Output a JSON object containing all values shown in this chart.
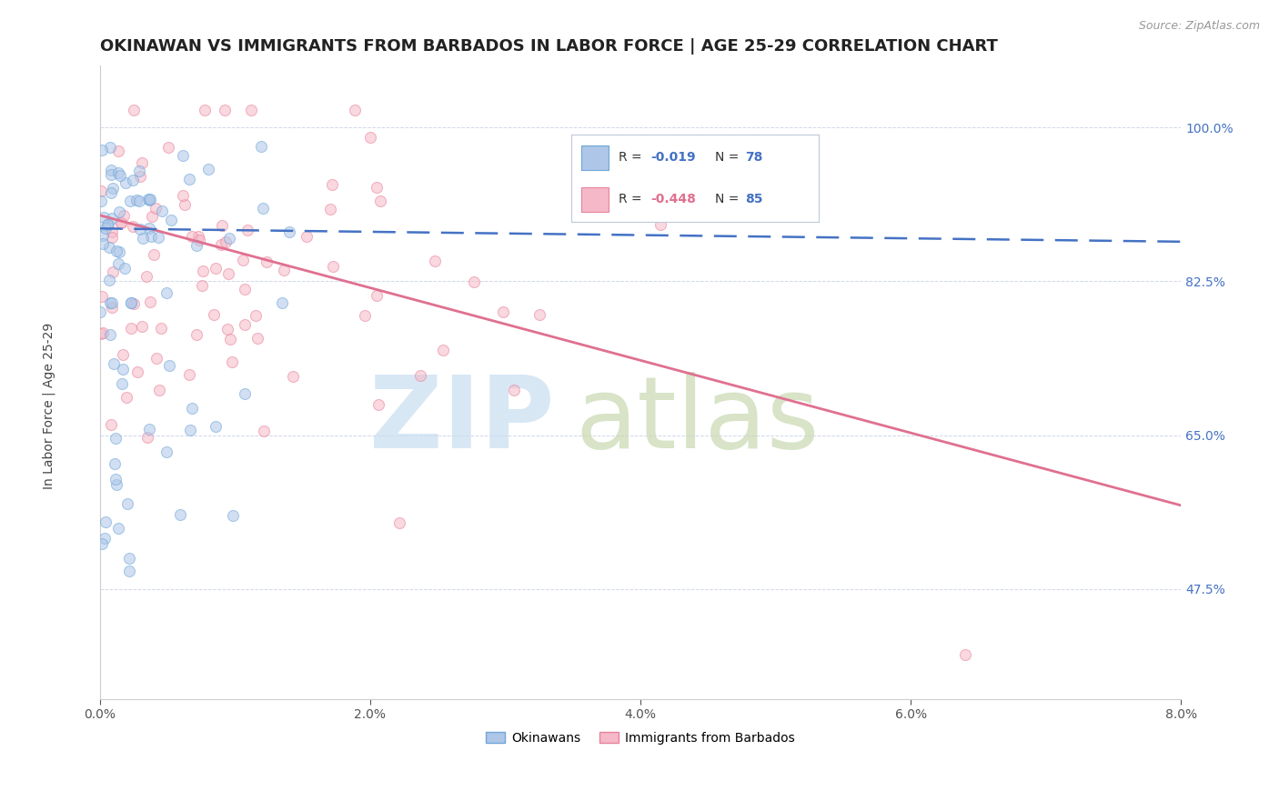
{
  "title": "OKINAWAN VS IMMIGRANTS FROM BARBADOS IN LABOR FORCE | AGE 25-29 CORRELATION CHART",
  "source": "Source: ZipAtlas.com",
  "xlabel_ticks": [
    "0.0%",
    "2.0%",
    "4.0%",
    "6.0%",
    "8.0%"
  ],
  "xlabel_vals": [
    0.0,
    2.0,
    4.0,
    6.0,
    8.0
  ],
  "ylabel_ticks": [
    "47.5%",
    "65.0%",
    "82.5%",
    "100.0%"
  ],
  "ylabel_vals": [
    47.5,
    65.0,
    82.5,
    100.0
  ],
  "xlim": [
    0.0,
    8.0
  ],
  "ylim": [
    35.0,
    107.0
  ],
  "legend_R_blue": "-0.019",
  "legend_N_blue": "78",
  "legend_R_pink": "-0.448",
  "legend_N_pink": "85",
  "blue_color": "#aec6e8",
  "pink_color": "#f5b8c8",
  "blue_edge": "#6ea6d8",
  "pink_edge": "#e8829a",
  "blue_line_color": "#4472c4",
  "pink_line_color": "#e07090",
  "seed": 42,
  "N_blue": 78,
  "N_pink": 85,
  "blue_line_y0": 88.5,
  "blue_line_y1": 87.0,
  "pink_line_y0": 90.0,
  "pink_line_y1": 57.0,
  "title_fontsize": 13,
  "label_fontsize": 10,
  "tick_fontsize": 10,
  "dot_size": 75,
  "dot_alpha": 0.55
}
